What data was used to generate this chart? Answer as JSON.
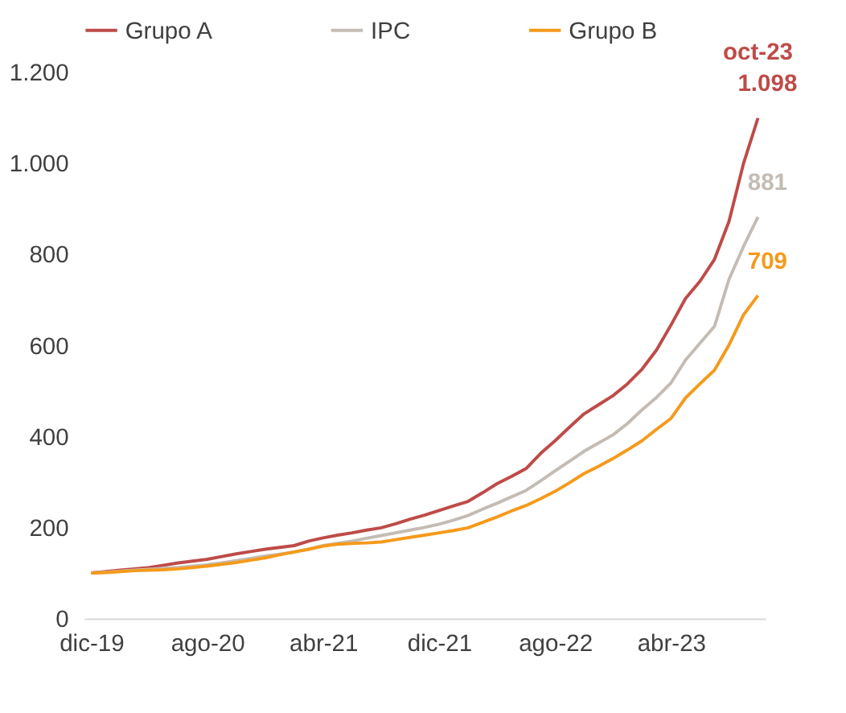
{
  "chart_data": {
    "type": "line",
    "categories": [
      "dic-19",
      null,
      null,
      null,
      null,
      null,
      null,
      null,
      "ago-20",
      null,
      null,
      null,
      null,
      null,
      null,
      null,
      "abr-21",
      null,
      null,
      null,
      null,
      null,
      null,
      null,
      "dic-21",
      null,
      null,
      null,
      null,
      null,
      null,
      null,
      "ago-22",
      null,
      null,
      null,
      null,
      null,
      null,
      null,
      "abr-23",
      null,
      null,
      null,
      null,
      null,
      null
    ],
    "series": [
      {
        "name": "Grupo A",
        "color": "#be4b48",
        "values": [
          100,
          103,
          106,
          109,
          112,
          117,
          122,
          126,
          130,
          136,
          142,
          147,
          152,
          156,
          160,
          170,
          177,
          183,
          188,
          194,
          199,
          208,
          218,
          227,
          237,
          247,
          257,
          276,
          296,
          312,
          329,
          362,
          390,
          420,
          449,
          469,
          489,
          515,
          547,
          589,
          644,
          702,
          740,
          788,
          871,
          998,
          1098
        ],
        "value_labels": [
          null,
          null,
          null,
          null,
          null,
          null,
          null,
          null,
          null,
          null,
          null,
          null,
          null,
          null,
          null,
          null,
          null,
          null,
          null,
          null,
          null,
          null,
          null,
          null,
          null,
          null,
          null,
          null,
          null,
          null,
          null,
          null,
          null,
          null,
          null,
          null,
          null,
          null,
          null,
          null,
          null,
          null,
          null,
          null,
          null,
          null,
          "1.098"
        ]
      },
      {
        "name": "IPC",
        "color": "#c4bcb4",
        "values": [
          100,
          102,
          104,
          106,
          108,
          110,
          112,
          115,
          118,
          122,
          127,
          132,
          137,
          141,
          146,
          152,
          160,
          165,
          170,
          176,
          182,
          188,
          194,
          200,
          207,
          216,
          226,
          240,
          253,
          267,
          281,
          302,
          324,
          345,
          367,
          385,
          403,
          428,
          458,
          485,
          517,
          567,
          604,
          641,
          744,
          816,
          881
        ],
        "value_labels": [
          null,
          null,
          null,
          null,
          null,
          null,
          null,
          null,
          null,
          null,
          null,
          null,
          null,
          null,
          null,
          null,
          null,
          null,
          null,
          null,
          null,
          null,
          null,
          null,
          null,
          null,
          null,
          null,
          null,
          null,
          null,
          null,
          null,
          null,
          null,
          null,
          null,
          null,
          null,
          null,
          null,
          null,
          null,
          null,
          null,
          null,
          "881"
        ]
      },
      {
        "name": "Grupo B",
        "color": "#f59a1b",
        "values": [
          100,
          101,
          103,
          105,
          106,
          107,
          109,
          112,
          115,
          119,
          123,
          128,
          133,
          140,
          146,
          152,
          159,
          163,
          165,
          166,
          168,
          173,
          178,
          183,
          188,
          193,
          199,
          211,
          223,
          236,
          248,
          263,
          279,
          298,
          318,
          334,
          351,
          370,
          390,
          415,
          439,
          484,
          515,
          545,
          600,
          666,
          709
        ],
        "value_labels": [
          null,
          null,
          null,
          null,
          null,
          null,
          null,
          null,
          null,
          null,
          null,
          null,
          null,
          null,
          null,
          null,
          null,
          null,
          null,
          null,
          null,
          null,
          null,
          null,
          null,
          null,
          null,
          null,
          null,
          null,
          null,
          null,
          null,
          null,
          null,
          null,
          null,
          null,
          null,
          null,
          null,
          null,
          null,
          null,
          null,
          null,
          "709"
        ]
      }
    ],
    "annotations": [
      "oct-23"
    ],
    "ylim": [
      0,
      1200
    ],
    "yticks": [
      0,
      200,
      400,
      600,
      800,
      {
        "value": 1000,
        "label": "1.000"
      },
      {
        "value": 1200,
        "label": "1.200"
      }
    ],
    "grid": false,
    "legend": "top",
    "marker": "none",
    "line_style": "solid"
  }
}
